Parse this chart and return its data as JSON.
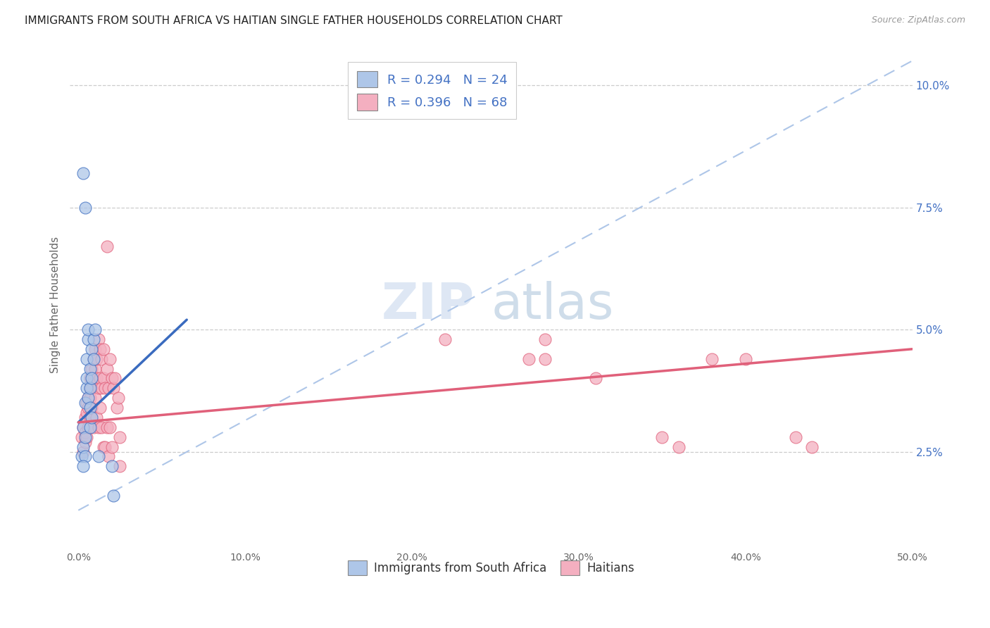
{
  "title": "IMMIGRANTS FROM SOUTH AFRICA VS HAITIAN SINGLE FATHER HOUSEHOLDS CORRELATION CHART",
  "source": "Source: ZipAtlas.com",
  "ylabel": "Single Father Households",
  "xlim": [
    -0.005,
    0.5
  ],
  "ylim": [
    0.005,
    0.105
  ],
  "y_ticks": [
    0.025,
    0.05,
    0.075,
    0.1
  ],
  "y_tick_labels_right": [
    "2.5%",
    "5.0%",
    "7.5%",
    "10.0%"
  ],
  "x_ticks": [
    0.0,
    0.1,
    0.2,
    0.3,
    0.4,
    0.5
  ],
  "x_tick_labels": [
    "0.0%",
    "10.0%",
    "20.0%",
    "30.0%",
    "40.0%",
    "50.0%"
  ],
  "legend_label1": "Immigrants from South Africa",
  "legend_label2": "Haitians",
  "blue_color": "#aec6e8",
  "pink_color": "#f4afc0",
  "line_blue": "#3a6bbf",
  "line_pink": "#e0607a",
  "dashed_line_color": "#aec6e8",
  "watermark_zip": "ZIP",
  "watermark_atlas": "atlas",
  "scatter_blue": [
    [
      0.002,
      0.024
    ],
    [
      0.003,
      0.026
    ],
    [
      0.003,
      0.03
    ],
    [
      0.004,
      0.028
    ],
    [
      0.004,
      0.024
    ],
    [
      0.003,
      0.022
    ],
    [
      0.004,
      0.035
    ],
    [
      0.005,
      0.038
    ],
    [
      0.005,
      0.04
    ],
    [
      0.005,
      0.044
    ],
    [
      0.006,
      0.048
    ],
    [
      0.006,
      0.05
    ],
    [
      0.006,
      0.036
    ],
    [
      0.007,
      0.042
    ],
    [
      0.007,
      0.038
    ],
    [
      0.007,
      0.034
    ],
    [
      0.007,
      0.03
    ],
    [
      0.008,
      0.046
    ],
    [
      0.008,
      0.04
    ],
    [
      0.008,
      0.032
    ],
    [
      0.009,
      0.044
    ],
    [
      0.009,
      0.048
    ],
    [
      0.01,
      0.05
    ],
    [
      0.012,
      0.024
    ],
    [
      0.02,
      0.022
    ],
    [
      0.003,
      0.082
    ],
    [
      0.004,
      0.075
    ],
    [
      0.021,
      0.016
    ]
  ],
  "scatter_pink": [
    [
      0.002,
      0.028
    ],
    [
      0.003,
      0.03
    ],
    [
      0.003,
      0.025
    ],
    [
      0.004,
      0.027
    ],
    [
      0.004,
      0.032
    ],
    [
      0.004,
      0.029
    ],
    [
      0.005,
      0.035
    ],
    [
      0.005,
      0.033
    ],
    [
      0.005,
      0.028
    ],
    [
      0.006,
      0.036
    ],
    [
      0.006,
      0.034
    ],
    [
      0.006,
      0.03
    ],
    [
      0.007,
      0.04
    ],
    [
      0.007,
      0.038
    ],
    [
      0.007,
      0.036
    ],
    [
      0.007,
      0.032
    ],
    [
      0.008,
      0.042
    ],
    [
      0.008,
      0.038
    ],
    [
      0.008,
      0.034
    ],
    [
      0.009,
      0.03
    ],
    [
      0.009,
      0.044
    ],
    [
      0.009,
      0.04
    ],
    [
      0.01,
      0.046
    ],
    [
      0.01,
      0.042
    ],
    [
      0.01,
      0.036
    ],
    [
      0.011,
      0.044
    ],
    [
      0.011,
      0.04
    ],
    [
      0.011,
      0.032
    ],
    [
      0.012,
      0.048
    ],
    [
      0.012,
      0.038
    ],
    [
      0.012,
      0.03
    ],
    [
      0.013,
      0.046
    ],
    [
      0.013,
      0.04
    ],
    [
      0.013,
      0.034
    ],
    [
      0.014,
      0.044
    ],
    [
      0.014,
      0.038
    ],
    [
      0.014,
      0.03
    ],
    [
      0.015,
      0.046
    ],
    [
      0.015,
      0.04
    ],
    [
      0.015,
      0.026
    ],
    [
      0.016,
      0.038
    ],
    [
      0.016,
      0.026
    ],
    [
      0.017,
      0.042
    ],
    [
      0.017,
      0.03
    ],
    [
      0.018,
      0.038
    ],
    [
      0.018,
      0.024
    ],
    [
      0.019,
      0.044
    ],
    [
      0.019,
      0.03
    ],
    [
      0.02,
      0.04
    ],
    [
      0.02,
      0.026
    ],
    [
      0.021,
      0.038
    ],
    [
      0.022,
      0.04
    ],
    [
      0.023,
      0.034
    ],
    [
      0.024,
      0.036
    ],
    [
      0.025,
      0.028
    ],
    [
      0.025,
      0.022
    ],
    [
      0.017,
      0.067
    ],
    [
      0.22,
      0.048
    ],
    [
      0.27,
      0.044
    ],
    [
      0.28,
      0.048
    ],
    [
      0.28,
      0.044
    ],
    [
      0.31,
      0.04
    ],
    [
      0.35,
      0.028
    ],
    [
      0.36,
      0.026
    ],
    [
      0.38,
      0.044
    ],
    [
      0.4,
      0.044
    ],
    [
      0.43,
      0.028
    ],
    [
      0.44,
      0.026
    ]
  ],
  "blue_trendline": [
    [
      0.0,
      0.031
    ],
    [
      0.065,
      0.052
    ]
  ],
  "pink_trendline": [
    [
      0.0,
      0.031
    ],
    [
      0.5,
      0.046
    ]
  ],
  "dashed_line": [
    [
      0.0,
      0.013
    ],
    [
      0.5,
      0.105
    ]
  ]
}
